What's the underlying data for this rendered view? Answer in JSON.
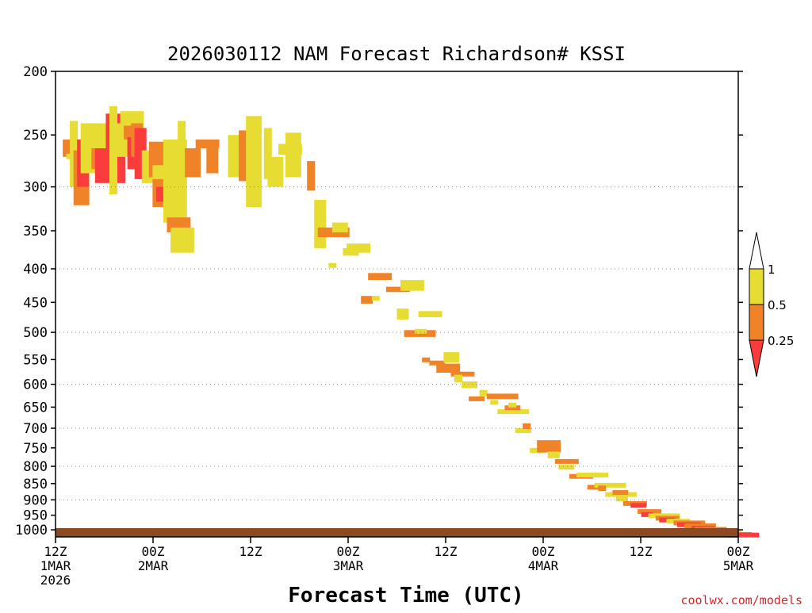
{
  "chart_data": {
    "type": "heatmap",
    "title": "2026030112 NAM Forecast Richardson# KSSI",
    "xlabel": "Forecast Time (UTC)",
    "ylabel": "",
    "credit": "coolwx.com/models",
    "x_unit": "forecast hours",
    "xlim": [
      0,
      84
    ],
    "y_unit": "hPa",
    "ylim": [
      1025,
      200
    ],
    "y_ticks": [
      {
        "value": 200,
        "label": "200"
      },
      {
        "value": 250,
        "label": "250"
      },
      {
        "value": 300,
        "label": "300"
      },
      {
        "value": 350,
        "label": "350"
      },
      {
        "value": 400,
        "label": "400"
      },
      {
        "value": 450,
        "label": "450"
      },
      {
        "value": 500,
        "label": "500"
      },
      {
        "value": 550,
        "label": "550"
      },
      {
        "value": 600,
        "label": "600"
      },
      {
        "value": 650,
        "label": "650"
      },
      {
        "value": 700,
        "label": "700"
      },
      {
        "value": 750,
        "label": "750"
      },
      {
        "value": 800,
        "label": "800"
      },
      {
        "value": 850,
        "label": "850"
      },
      {
        "value": 900,
        "label": "900"
      },
      {
        "value": 950,
        "label": "950"
      },
      {
        "value": 1000,
        "label": "1000"
      }
    ],
    "gridlines_hpa": [
      300,
      400,
      500,
      600,
      700,
      800,
      900
    ],
    "x_ticks": [
      {
        "value": 0,
        "lines": [
          "12Z",
          "1MAR",
          "2026"
        ]
      },
      {
        "value": 12,
        "lines": [
          "00Z",
          "2MAR"
        ]
      },
      {
        "value": 24,
        "lines": [
          "12Z"
        ]
      },
      {
        "value": 36,
        "lines": [
          "00Z",
          "3MAR"
        ]
      },
      {
        "value": 48,
        "lines": [
          "12Z"
        ]
      },
      {
        "value": 60,
        "lines": [
          "00Z",
          "4MAR"
        ]
      },
      {
        "value": 72,
        "lines": [
          "12Z"
        ]
      },
      {
        "value": 84,
        "lines": [
          "00Z",
          "5MAR"
        ]
      }
    ],
    "legend": {
      "placement": "right",
      "top_label": "1",
      "entries": [
        {
          "range": "0.5-1",
          "color": "#e6dc32",
          "label": "0.5"
        },
        {
          "range": "0.25-0.5",
          "color": "#f08228",
          "label": "0.25"
        },
        {
          "range": "<0.25",
          "color": "#fa3c3c",
          "label": ""
        }
      ]
    },
    "colors": {
      "yellow": "#e6dc32",
      "orange": "#f08228",
      "red": "#fa3c3c",
      "ground": "#8b4a22"
    },
    "surface_pressure_hpa": 1015,
    "cells": [
      [
        2,
        254,
        4,
        270,
        "o"
      ],
      [
        3,
        267,
        4,
        272,
        "y"
      ],
      [
        4,
        300,
        1,
        238,
        "y"
      ],
      [
        5,
        320,
        2,
        264,
        "o"
      ],
      [
        6,
        254,
        1.5,
        300,
        "r"
      ],
      [
        7,
        240,
        3,
        286,
        "y"
      ],
      [
        10,
        240,
        3,
        282,
        "y"
      ],
      [
        10,
        262,
        2.5,
        282,
        "o"
      ],
      [
        11,
        262,
        1.5,
        296,
        "r"
      ],
      [
        14,
        232,
        2.5,
        296,
        "r"
      ],
      [
        15,
        226,
        1,
        308,
        "y"
      ],
      [
        16,
        240,
        2,
        270,
        "y"
      ],
      [
        18,
        230,
        3,
        262,
        "y"
      ],
      [
        19,
        242,
        2,
        254,
        "o"
      ],
      [
        20,
        252,
        1.5,
        282,
        "r"
      ],
      [
        21,
        240,
        1.5,
        270,
        "o"
      ],
      [
        22,
        244,
        1.5,
        292,
        "r"
      ],
      [
        24,
        264,
        2.5,
        296,
        "y"
      ],
      [
        26,
        256,
        2,
        290,
        "o"
      ],
      [
        27,
        278,
        2,
        312,
        "y"
      ],
      [
        27,
        292,
        2,
        322,
        "o"
      ],
      [
        28,
        300,
        1.5,
        316,
        "r"
      ],
      [
        30,
        254,
        3,
        340,
        "y"
      ],
      [
        31,
        334,
        3,
        352,
        "o"
      ],
      [
        32,
        346,
        3,
        378,
        "y"
      ],
      [
        34,
        238,
        1,
        268,
        "y"
      ],
      [
        36,
        262,
        2,
        290,
        "o"
      ],
      [
        39,
        254,
        3,
        262,
        "o"
      ],
      [
        42,
        256,
        1.5,
        286,
        "o"
      ],
      [
        48,
        250,
        2.5,
        290,
        "y"
      ],
      [
        51,
        246,
        1.5,
        294,
        "o"
      ],
      [
        53,
        234,
        2,
        322,
        "y"
      ],
      [
        58,
        244,
        1,
        292,
        "y"
      ],
      [
        59,
        270,
        2,
        300,
        "y"
      ],
      [
        62,
        258,
        3,
        268,
        "y"
      ],
      [
        64,
        248,
        2,
        290,
        "y"
      ],
      [
        70,
        274,
        1,
        304,
        "o"
      ],
      [
        72,
        314,
        1.5,
        372,
        "y"
      ],
      [
        73,
        346,
        4,
        358,
        "o"
      ],
      [
        76,
        392,
        1,
        398,
        "y"
      ],
      [
        77,
        340,
        2,
        352,
        "y"
      ],
      [
        80,
        382,
        2,
        372,
        "y"
      ],
      [
        81,
        366,
        3,
        378,
        "y"
      ],
      [
        85,
        440,
        1.5,
        452,
        "o"
      ],
      [
        87,
        406,
        3,
        416,
        "o"
      ],
      [
        88,
        440,
        1,
        444,
        "y"
      ],
      [
        92,
        426,
        3,
        434,
        "o"
      ],
      [
        95,
        460,
        1.5,
        478,
        "y"
      ],
      [
        96,
        416,
        3,
        432,
        "y"
      ],
      [
        97,
        496,
        4,
        508,
        "o"
      ],
      [
        100,
        494,
        1.5,
        500,
        "y"
      ],
      [
        101,
        464,
        3,
        474,
        "y"
      ],
      [
        102,
        546,
        1,
        552,
        "o"
      ],
      [
        104,
        552,
        2,
        560,
        "o"
      ],
      [
        106,
        558,
        3,
        576,
        "o"
      ],
      [
        108,
        536,
        2,
        556,
        "y"
      ],
      [
        110,
        574,
        3,
        580,
        "o"
      ],
      [
        111,
        580,
        1,
        596,
        "y"
      ],
      [
        113,
        594,
        2,
        608,
        "y"
      ],
      [
        115,
        626,
        2,
        636,
        "o"
      ],
      [
        118,
        612,
        1,
        626,
        "y"
      ],
      [
        120,
        620,
        4,
        632,
        "o"
      ],
      [
        121,
        634,
        1,
        640,
        "y"
      ],
      [
        123,
        655,
        4,
        660,
        "y"
      ],
      [
        125,
        646,
        2,
        650,
        "o"
      ],
      [
        126,
        640,
        1,
        650,
        "y"
      ],
      [
        128,
        700,
        2,
        712,
        "y"
      ],
      [
        130,
        688,
        1,
        702,
        "o"
      ],
      [
        132,
        750,
        2,
        764,
        "y"
      ],
      [
        134,
        730,
        3,
        762,
        "o"
      ],
      [
        137,
        760,
        1.5,
        778,
        "y"
      ],
      [
        139,
        780,
        3,
        780,
        "o"
      ],
      [
        140,
        796,
        2,
        808,
        "y"
      ],
      [
        143,
        822,
        3,
        830,
        "o"
      ],
      [
        145,
        818,
        4,
        818,
        "y"
      ],
      [
        148,
        854,
        1.5,
        866,
        "o"
      ],
      [
        150,
        848,
        4,
        854,
        "y"
      ],
      [
        151,
        856,
        1,
        872,
        "o"
      ],
      [
        153,
        876,
        4,
        880,
        "y"
      ],
      [
        155,
        870,
        2,
        880,
        "o"
      ],
      [
        156,
        890,
        1.5,
        900,
        "y"
      ],
      [
        158,
        904,
        3,
        910,
        "o"
      ],
      [
        160,
        910,
        2,
        922,
        "r"
      ],
      [
        162,
        930,
        3,
        938,
        "o"
      ],
      [
        163,
        940,
        1.5,
        944,
        "r"
      ],
      [
        165,
        944,
        4,
        948,
        "y"
      ],
      [
        167,
        952,
        3,
        956,
        "o"
      ],
      [
        168,
        958,
        2,
        962,
        "r"
      ],
      [
        170,
        962,
        3,
        966,
        "y"
      ],
      [
        172,
        968,
        4,
        972,
        "o"
      ],
      [
        173,
        974,
        3,
        980,
        "r"
      ],
      [
        175,
        978,
        4,
        984,
        "o"
      ],
      [
        177,
        986,
        3,
        992,
        "r"
      ],
      [
        178,
        990,
        4,
        994,
        "o"
      ],
      [
        180,
        996,
        3,
        1000,
        "r"
      ],
      [
        182,
        1000,
        4,
        1004,
        "y"
      ],
      [
        183,
        1004,
        3,
        1008,
        "r"
      ],
      [
        185,
        1008,
        4,
        1012,
        "o"
      ],
      [
        187,
        1010,
        4,
        1014,
        "r"
      ]
    ]
  }
}
